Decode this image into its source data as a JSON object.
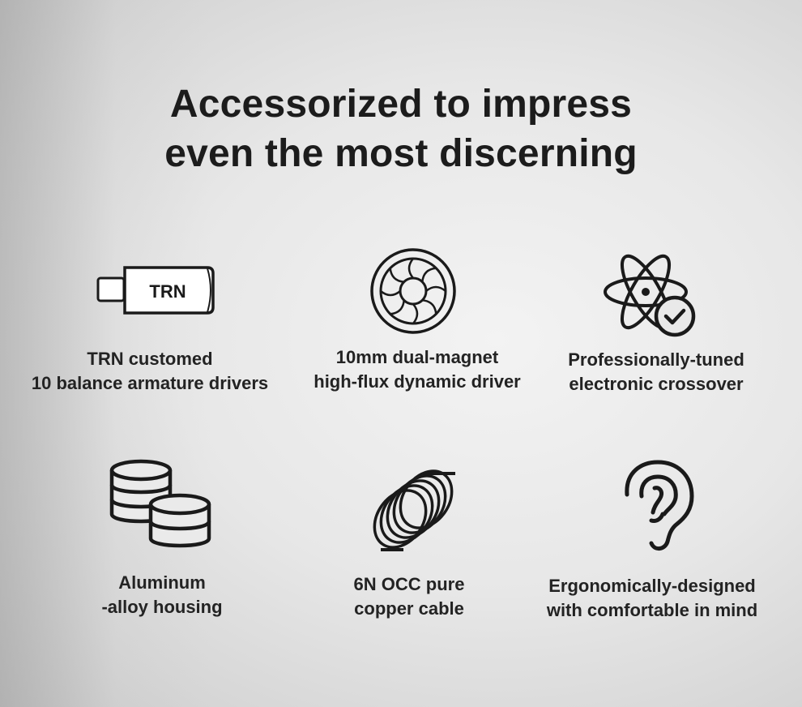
{
  "headline": {
    "line1": "Accessorized to impress",
    "line2": "even the most discerning"
  },
  "features": [
    {
      "icon": "usb-drive-icon",
      "logo_text": "TRN",
      "line1": "TRN customed",
      "line2": "10 balance armature drivers"
    },
    {
      "icon": "dynamic-driver-icon",
      "line1": "10mm dual-magnet",
      "line2": "high-flux dynamic driver"
    },
    {
      "icon": "atom-check-icon",
      "line1": "Professionally-tuned",
      "line2": "electronic crossover"
    },
    {
      "icon": "coin-stack-icon",
      "line1": "Aluminum",
      "line2": "-alloy housing"
    },
    {
      "icon": "cable-coil-icon",
      "line1": "6N OCC pure",
      "line2": "copper cable"
    },
    {
      "icon": "ear-icon",
      "line1": "Ergonomically-designed",
      "line2": "with comfortable in mind"
    }
  ],
  "colors": {
    "text": "#1c1c1c",
    "icon": "#1a1a1a",
    "background": "#e7e7e7"
  }
}
